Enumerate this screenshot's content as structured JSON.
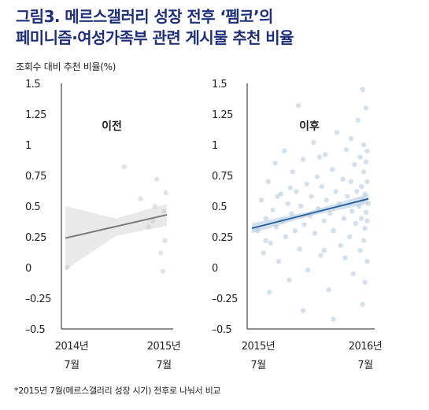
{
  "title_lines": [
    "그림3. 메르스갤러리 성장 전후 ‘펨코’의",
    "페미니즘·여성가족부 관련 게시물 추천 비율"
  ],
  "ylabel": "조회수 대비 추천 비율(%)",
  "footnote": "*2015년 7월(메르스갤러리 성장 시기) 전후로 나눠서 비교",
  "chart_data": [
    {
      "type": "scatter",
      "panel": "이전",
      "ylim": [
        -0.5,
        1.5
      ],
      "yticks": [
        "1.5",
        "1.25",
        "1",
        "0.75",
        "0.5",
        "0.25",
        "0",
        "–0.25",
        "–0.5"
      ],
      "ytick_values": [
        1.5,
        1.25,
        1,
        0.75,
        0.5,
        0.25,
        0,
        -0.25,
        -0.5
      ],
      "x_tick_labels": [
        [
          "2014년",
          "7월"
        ],
        [
          "2015년",
          "7월"
        ]
      ],
      "xlim": [
        0,
        1
      ],
      "points": [
        [
          0.02,
          0.0
        ],
        [
          0.58,
          0.82
        ],
        [
          0.74,
          0.56
        ],
        [
          0.86,
          0.38
        ],
        [
          0.82,
          0.33
        ],
        [
          0.9,
          0.72
        ],
        [
          0.94,
          0.12
        ],
        [
          0.97,
          0.46
        ],
        [
          0.98,
          0.22
        ],
        [
          0.99,
          0.61
        ],
        [
          0.96,
          -0.03
        ],
        [
          0.88,
          0.5
        ]
      ],
      "trend": {
        "x": [
          0.0,
          1.0
        ],
        "y": [
          0.24,
          0.43
        ]
      },
      "band": {
        "x": [
          0.0,
          0.5,
          1.0
        ],
        "lower": [
          -0.02,
          0.26,
          0.34
        ],
        "upper": [
          0.5,
          0.4,
          0.52
        ]
      },
      "colors": {
        "points": "#c8c8c8",
        "line": "#7a7a7a",
        "band": "#e2e2e2"
      }
    },
    {
      "type": "scatter",
      "panel": "이후",
      "ylim": [
        -0.5,
        1.5
      ],
      "yticks": [
        "1.5",
        "1.25",
        "1",
        "0.75",
        "0.5",
        "0.25",
        "0",
        "–0.25",
        "–0.5"
      ],
      "ytick_values": [
        1.5,
        1.25,
        1,
        0.75,
        0.5,
        0.25,
        0,
        -0.25,
        -0.5
      ],
      "x_tick_labels": [
        [
          "2015년",
          "7월"
        ],
        [
          "2016년",
          "7월"
        ]
      ],
      "xlim": [
        0,
        1
      ],
      "points": [
        [
          0.05,
          0.3
        ],
        [
          0.08,
          0.55
        ],
        [
          0.1,
          0.12
        ],
        [
          0.12,
          0.4
        ],
        [
          0.14,
          0.7
        ],
        [
          0.16,
          0.2
        ],
        [
          0.18,
          0.47
        ],
        [
          0.2,
          0.85
        ],
        [
          0.21,
          0.33
        ],
        [
          0.23,
          0.05
        ],
        [
          0.25,
          0.6
        ],
        [
          0.26,
          0.38
        ],
        [
          0.28,
          0.95
        ],
        [
          0.29,
          0.25
        ],
        [
          0.31,
          0.52
        ],
        [
          0.32,
          -0.1
        ],
        [
          0.34,
          0.44
        ],
        [
          0.35,
          0.78
        ],
        [
          0.37,
          0.3
        ],
        [
          0.38,
          0.62
        ],
        [
          0.4,
          1.32
        ],
        [
          0.41,
          0.15
        ],
        [
          0.42,
          0.5
        ],
        [
          0.44,
          0.88
        ],
        [
          0.45,
          0.35
        ],
        [
          0.47,
          0.68
        ],
        [
          0.48,
          -0.02
        ],
        [
          0.5,
          0.42
        ],
        [
          0.51,
          0.58
        ],
        [
          0.53,
          1.02
        ],
        [
          0.54,
          0.28
        ],
        [
          0.56,
          0.74
        ],
        [
          0.57,
          0.48
        ],
        [
          0.59,
          0.1
        ],
        [
          0.6,
          0.66
        ],
        [
          0.62,
          0.38
        ],
        [
          0.63,
          0.92
        ],
        [
          0.64,
          0.55
        ],
        [
          0.66,
          -0.18
        ],
        [
          0.67,
          0.44
        ],
        [
          0.69,
          0.8
        ],
        [
          0.7,
          0.3
        ],
        [
          0.72,
          0.62
        ],
        [
          0.73,
          1.1
        ],
        [
          0.75,
          0.52
        ],
        [
          0.76,
          0.18
        ],
        [
          0.78,
          0.72
        ],
        [
          0.79,
          0.4
        ],
        [
          0.81,
          0.96
        ],
        [
          0.82,
          0.58
        ],
        [
          0.84,
          0.25
        ],
        [
          0.85,
          0.7
        ],
        [
          0.86,
          0.46
        ],
        [
          0.87,
          -0.05
        ],
        [
          0.88,
          0.84
        ],
        [
          0.89,
          0.36
        ],
        [
          0.9,
          0.62
        ],
        [
          0.91,
          1.2
        ],
        [
          0.92,
          0.5
        ],
        [
          0.93,
          0.14
        ],
        [
          0.93,
          0.9
        ],
        [
          0.94,
          0.4
        ],
        [
          0.94,
          0.66
        ],
        [
          0.95,
          -0.3
        ],
        [
          0.95,
          1.45
        ],
        [
          0.95,
          0.55
        ],
        [
          0.96,
          0.22
        ],
        [
          0.96,
          0.78
        ],
        [
          0.96,
          1.0
        ],
        [
          0.97,
          0.32
        ],
        [
          0.97,
          0.6
        ],
        [
          0.97,
          -0.12
        ],
        [
          0.98,
          0.86
        ],
        [
          0.98,
          0.45
        ],
        [
          0.98,
          1.3
        ],
        [
          0.99,
          0.05
        ],
        [
          0.99,
          0.7
        ],
        [
          0.99,
          0.95
        ],
        [
          0.99,
          0.38
        ],
        [
          1.0,
          0.52
        ],
        [
          0.15,
          -0.2
        ],
        [
          0.44,
          -0.35
        ],
        [
          0.7,
          -0.42
        ],
        [
          0.85,
          1.05
        ],
        [
          0.58,
          0.9
        ],
        [
          0.33,
          0.65
        ],
        [
          0.22,
          0.58
        ],
        [
          0.12,
          0.22
        ],
        [
          0.62,
          0.14
        ],
        [
          0.8,
          0.08
        ]
      ],
      "trend": {
        "x": [
          0.0,
          1.0
        ],
        "y": [
          0.32,
          0.56
        ]
      },
      "band": {
        "x": [
          0.0,
          0.5,
          1.0
        ],
        "lower": [
          0.28,
          0.42,
          0.52
        ],
        "upper": [
          0.36,
          0.46,
          0.6
        ]
      },
      "colors": {
        "points": "#a9c4dc",
        "line": "#2b62a0",
        "band": "#c4d7e8"
      }
    }
  ]
}
